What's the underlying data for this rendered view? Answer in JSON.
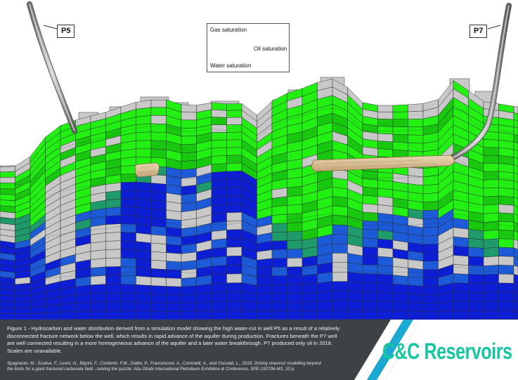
{
  "wells": {
    "p5": {
      "label": "P5"
    },
    "p7": {
      "label": "P7"
    }
  },
  "legend": {
    "gas": "Gas saturation",
    "oil": "Oil saturation",
    "water": "Water saturation"
  },
  "colors": {
    "oil": "#22f013",
    "oil_dark": "#18c80e",
    "water": "#0d1fd4",
    "water_mid": "#1c5ad8",
    "transition": "#1f9a6b",
    "inactive": "#c8c8c8",
    "fracture": "#d9c29a",
    "caption_bg": "#3d4245",
    "logo": "#16c6a0"
  },
  "caption": {
    "text": "Figure 1 - Hydrocarbon and water distribution derived from a simulation model showing the high water-cut in well P5 as a result of a relatively disconnected fracture network below the well, which results in rapid advance of the aquifer during production. Fractures beneath the P7 well are well connected resulting in a more homogeneous advance of the aquifer and a later water breakthrough. P7 produced only oil in 2018. Scales are unavailable.",
    "citation": "Spagnuolo, M., Scalise, F., Leoni, G., Bigoni, F., Contento, F.M., Diatto, P., Francesconi, A., Cominelli, A., and Osculati, L., 2018, Driving reservoir modelling beyond the limits for a giant fractured carbonate field - solving the puzzle: Abu Dhabi International Petroleum Exhibition & Conference, SPE-192708-MS, 20 p."
  },
  "logo": {
    "text": "C&C Reservoirs"
  }
}
